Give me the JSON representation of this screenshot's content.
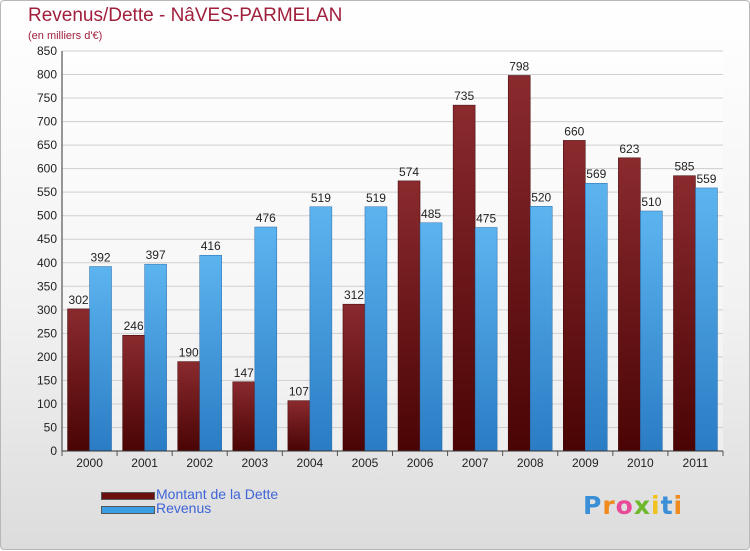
{
  "header": {
    "title": "Revenus/Dette - NâVES-PARMELAN",
    "subtitle": "(en milliers d'€)"
  },
  "legend": {
    "items": [
      {
        "label": "Montant de la Dette",
        "color": "#7a1a1a"
      },
      {
        "label": "Revenus",
        "color": "#3a9ee4"
      }
    ]
  },
  "logo": {
    "letters": [
      {
        "ch": "P",
        "color": "#3a8fd6"
      },
      {
        "ch": "r",
        "color": "#f08a1c"
      },
      {
        "ch": "o",
        "color": "#e84a9a"
      },
      {
        "ch": "x",
        "color": "#6fb82e"
      },
      {
        "ch": "i",
        "color": "#f0c21c"
      },
      {
        "ch": "t",
        "color": "#3a8fd6"
      },
      {
        "ch": "i",
        "color": "#f08a1c"
      }
    ]
  },
  "chart_data": {
    "type": "bar",
    "title": "Revenus/Dette - NâVES-PARMELAN",
    "subtitle": "(en milliers d'€)",
    "categories": [
      "2000",
      "2001",
      "2002",
      "2003",
      "2004",
      "2005",
      "2006",
      "2007",
      "2008",
      "2009",
      "2010",
      "2011"
    ],
    "series": [
      {
        "name": "Montant de la Dette",
        "color": "#7a1a1a",
        "values": [
          302,
          246,
          190,
          147,
          107,
          312,
          574,
          735,
          798,
          660,
          623,
          585
        ]
      },
      {
        "name": "Revenus",
        "color": "#3a9ee4",
        "values": [
          392,
          397,
          416,
          476,
          519,
          519,
          485,
          475,
          520,
          569,
          510,
          559
        ]
      }
    ],
    "ylim": [
      0,
      850
    ],
    "yticks": [
      0,
      50,
      100,
      150,
      200,
      250,
      300,
      350,
      400,
      450,
      500,
      550,
      600,
      650,
      700,
      750,
      800,
      850
    ],
    "grid": true,
    "legend_position": "bottom-left"
  }
}
